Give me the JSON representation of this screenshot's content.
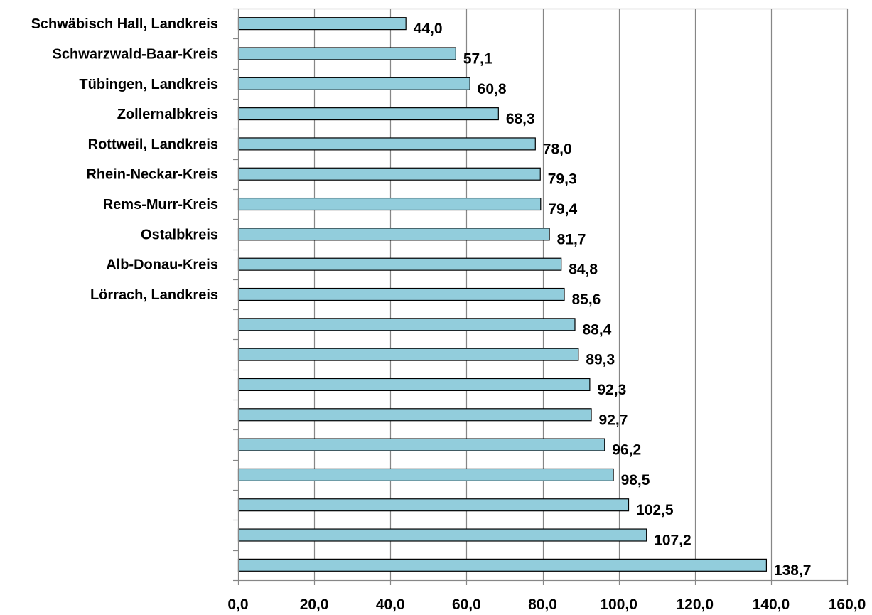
{
  "chart_data": {
    "type": "bar",
    "orientation": "horizontal",
    "categories": [
      "Schwäbisch Hall, Landkreis",
      "Schwarzwald-Baar-Kreis",
      "Tübingen, Landkreis",
      "Zollernalbkreis",
      "Rottweil, Landkreis",
      "Rhein-Neckar-Kreis",
      "Rems-Murr-Kreis",
      "Ostalbkreis",
      "Alb-Donau-Kreis",
      "Lörrach, Landkreis",
      "",
      "",
      "",
      "",
      "",
      "",
      "",
      "",
      ""
    ],
    "values": [
      44.0,
      57.1,
      60.8,
      68.3,
      78.0,
      79.3,
      79.4,
      81.7,
      84.8,
      85.6,
      88.4,
      89.3,
      92.3,
      92.7,
      96.2,
      98.5,
      102.5,
      107.2,
      138.7
    ],
    "value_labels": [
      "44,0",
      "57,1",
      "60,8",
      "68,3",
      "78,0",
      "79,3",
      "79,4",
      "81,7",
      "84,8",
      "85,6",
      "88,4",
      "89,3",
      "92,3",
      "92,7",
      "96,2",
      "98,5",
      "102,5",
      "107,2",
      "138,7"
    ],
    "xlim": [
      0,
      160
    ],
    "x_ticks": [
      0,
      20,
      40,
      60,
      80,
      100,
      120,
      140,
      160
    ],
    "x_tick_labels": [
      "0,0",
      "20,0",
      "40,0",
      "60,0",
      "80,0",
      "100,0",
      "120,0",
      "140,0",
      "160,0"
    ],
    "title": "",
    "xlabel": "",
    "ylabel": "",
    "grid": "vertical",
    "legend": "none",
    "bar_color": "#92CDDC",
    "bar_edge_color": "#000000",
    "grid_color": "#868686"
  }
}
